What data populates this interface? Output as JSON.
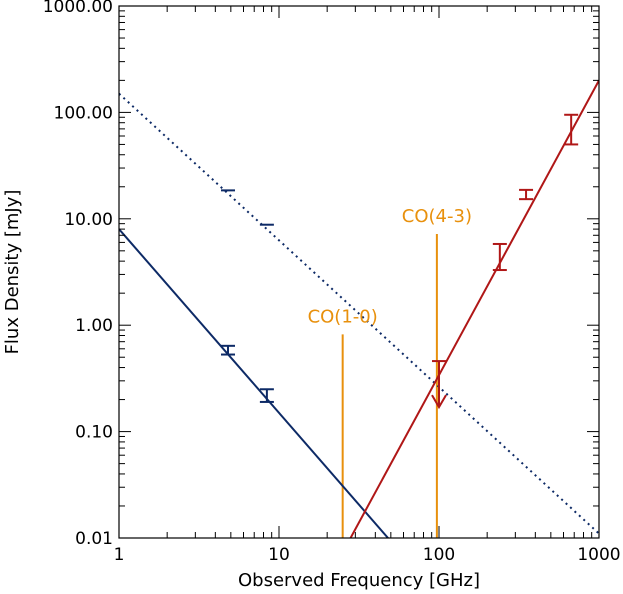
{
  "chart_data": {
    "type": "line",
    "title": "",
    "xlabel": "Observed Frequency [GHz]",
    "ylabel": "Flux Density [mJy]",
    "x_scale": "log",
    "y_scale": "log",
    "xlim": [
      1,
      1000
    ],
    "ylim": [
      0.01,
      1000
    ],
    "x_ticks": [
      1,
      10,
      100,
      1000
    ],
    "x_tick_labels": [
      "1",
      "10",
      "100",
      "1000"
    ],
    "y_ticks": [
      0.01,
      0.1,
      1,
      10,
      100,
      1000
    ],
    "y_tick_labels": [
      "0.01",
      "0.10",
      "1.00",
      "10.00",
      "100.00",
      "1000.00"
    ],
    "grid": false,
    "legend": "none",
    "series": [
      {
        "style": "solid",
        "color": "#0d2a66",
        "line": [
          [
            1,
            8.0
          ],
          [
            48,
            0.01
          ]
        ],
        "points": [
          {
            "x": 4.8,
            "y": 0.58,
            "ylo": 0.53,
            "yhi": 0.64
          },
          {
            "x": 8.4,
            "y": 0.22,
            "ylo": 0.19,
            "yhi": 0.25
          }
        ]
      },
      {
        "style": "dotted",
        "color": "#0d2a66",
        "line": [
          [
            1,
            150
          ],
          [
            1000,
            0.011
          ]
        ],
        "points": [
          {
            "x": 4.8,
            "y": 18.5,
            "ylo": 18.5,
            "yhi": 18.5
          },
          {
            "x": 8.4,
            "y": 8.8,
            "ylo": 8.8,
            "yhi": 8.8
          }
        ]
      },
      {
        "style": "solid",
        "color": "#b01717",
        "line": [
          [
            28,
            0.01
          ],
          [
            1000,
            200
          ]
        ],
        "points": [
          {
            "x": 240,
            "y": 4.4,
            "ylo": 3.3,
            "yhi": 5.8
          },
          {
            "x": 350,
            "y": 17,
            "ylo": 15.3,
            "yhi": 18.7
          },
          {
            "x": 670,
            "y": 70,
            "ylo": 50,
            "yhi": 95
          }
        ],
        "upper_limits": [
          {
            "x": 100,
            "y": 0.46
          }
        ]
      }
    ],
    "annotations": [
      {
        "text": "CO(1-0)",
        "x": 25,
        "y_top": 0.82,
        "color": "#e8900c"
      },
      {
        "text": "CO(4-3)",
        "x": 97,
        "y_top": 7.2,
        "color": "#e8900c"
      }
    ]
  }
}
